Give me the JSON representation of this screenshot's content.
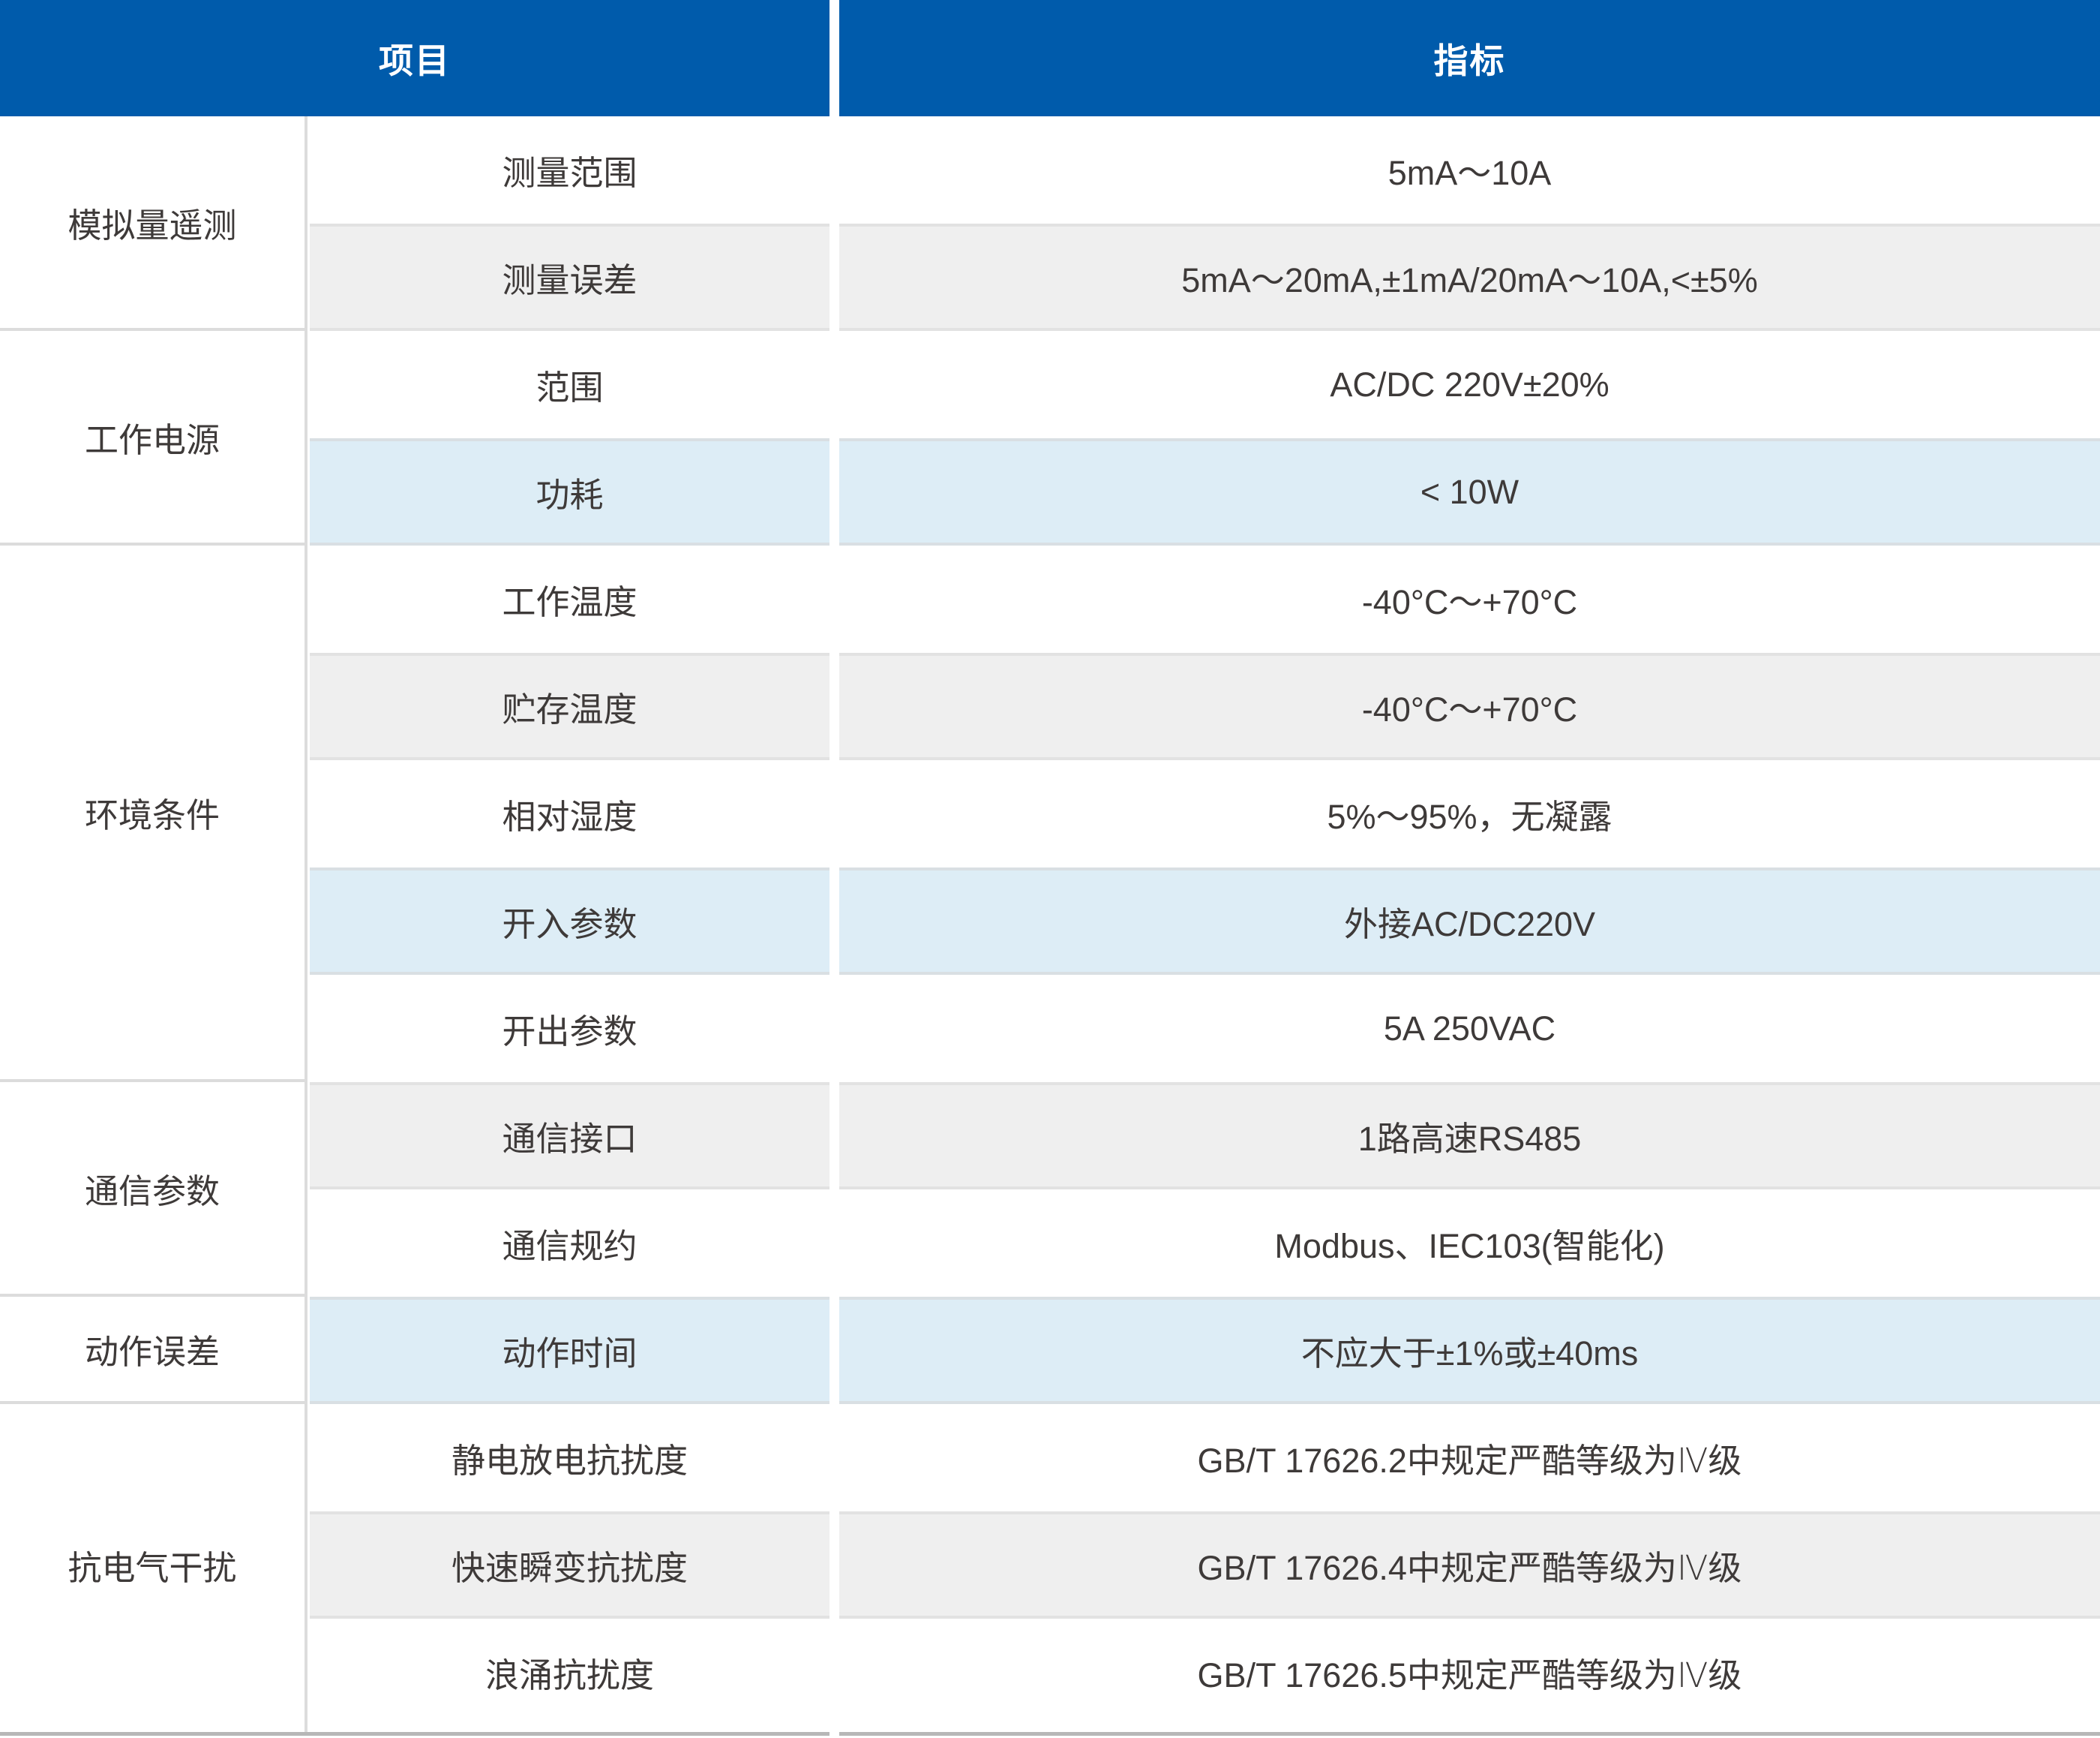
{
  "colors": {
    "header-bg": "#005BAB",
    "header-text": "#ffffff",
    "text": "#3e3a39",
    "row-gray": "#efefef",
    "row-blue": "#ddedf6",
    "border": "#dcdcdc",
    "border-gray": "#e2e2e2",
    "border-blue": "#d9dfe3",
    "bottom-line": "#b7b7b7"
  },
  "table": {
    "header": {
      "col1": "项目",
      "col2": "指标"
    },
    "groups": [
      {
        "label": "模拟量遥测",
        "rows": [
          {
            "item": "测量范围",
            "value": "5mA～10A",
            "style": "white"
          },
          {
            "item": "测量误差",
            "value": "5mA～20mA,±1mA/20mA～10A,<±5%",
            "style": "gray"
          }
        ]
      },
      {
        "label": "工作电源",
        "rows": [
          {
            "item": "范围",
            "value": "AC/DC 220V±20%",
            "style": "white"
          },
          {
            "item": "功耗",
            "value": "< 10W",
            "style": "blue"
          }
        ]
      },
      {
        "label": "环境条件",
        "rows": [
          {
            "item": "工作温度",
            "value": "-40°C～+70°C",
            "style": "white"
          },
          {
            "item": "贮存温度",
            "value": "-40°C～+70°C",
            "style": "gray"
          },
          {
            "item": "相对湿度",
            "value": "5%～95%，无凝露",
            "style": "white"
          },
          {
            "item": "开入参数",
            "value": "外接AC/DC220V",
            "style": "blue"
          },
          {
            "item": "开出参数",
            "value": "5A 250VAC",
            "style": "white"
          }
        ]
      },
      {
        "label": "通信参数",
        "rows": [
          {
            "item": "通信接口",
            "value": "1路高速RS485",
            "style": "gray"
          },
          {
            "item": "通信规约",
            "value": "Modbus、IEC103(智能化)",
            "style": "white"
          }
        ]
      },
      {
        "label": "动作误差",
        "rows": [
          {
            "item": "动作时间",
            "value": "不应大于±1%或±40ms",
            "style": "blue"
          }
        ]
      },
      {
        "label": "抗电气干扰",
        "rows": [
          {
            "item": "静电放电抗扰度",
            "value": "GB/T 17626.2中规定严酷等级为Ⅳ级",
            "style": "white"
          },
          {
            "item": "快速瞬变抗扰度",
            "value": "GB/T 17626.4中规定严酷等级为Ⅳ级",
            "style": "gray"
          },
          {
            "item": "浪涌抗扰度",
            "value": "GB/T 17626.5中规定严酷等级为Ⅳ级",
            "style": "white"
          }
        ]
      }
    ]
  }
}
